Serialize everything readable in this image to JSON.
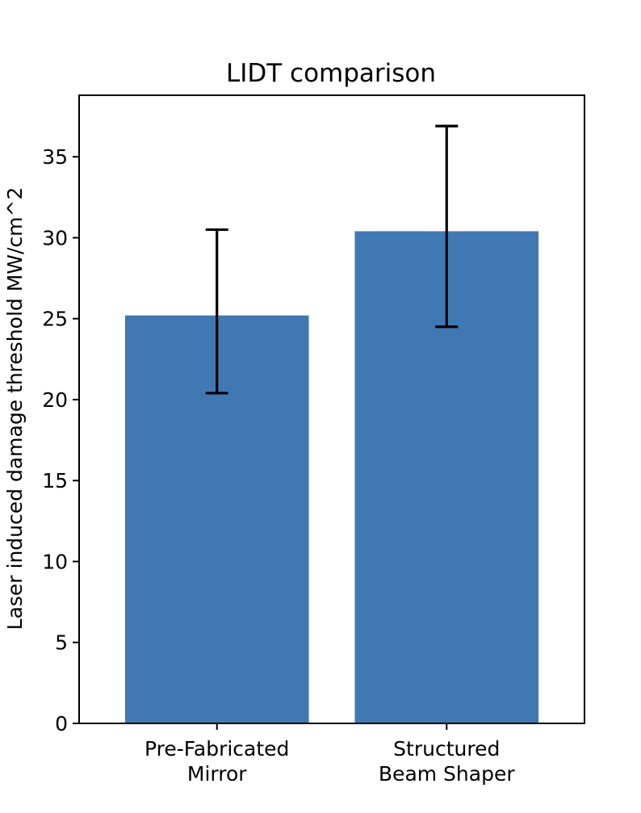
{
  "chart_data": {
    "type": "bar",
    "title": "LIDT comparison",
    "xlabel": "",
    "ylabel": "Laser induced damage threshold MW/cm^2",
    "categories": [
      [
        "Pre-Fabricated",
        "Mirror"
      ],
      [
        "Structured",
        "Beam Shaper"
      ]
    ],
    "values": [
      25.2,
      30.4
    ],
    "error_low": [
      20.4,
      24.5
    ],
    "error_high": [
      30.5,
      36.9
    ],
    "ylim": [
      0,
      38.8
    ],
    "yticks": [
      0,
      5,
      10,
      15,
      20,
      25,
      30,
      35
    ],
    "grid": false,
    "legend": "none",
    "bar_color": "#4078b4",
    "error_color": "#000000"
  }
}
